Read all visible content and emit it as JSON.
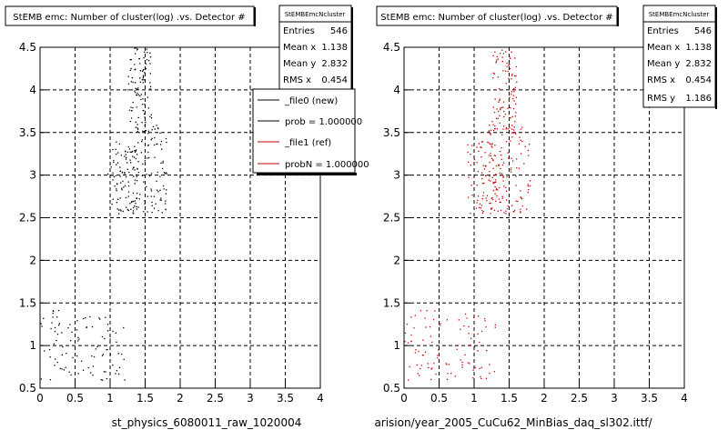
{
  "panels": [
    {
      "title": "StEMB emc: Number of cluster(log) .vs. Detector #",
      "stats": {
        "name": "StEMBEmcNcluster",
        "rows": [
          {
            "label": "Entries",
            "value": "546"
          },
          {
            "label": "Mean x",
            "value": "1.138"
          },
          {
            "label": "Mean y",
            "value": "2.832"
          },
          {
            "label": "RMS x",
            "value": "0.454"
          }
        ]
      },
      "legend": [
        {
          "label": "_file0 (new)",
          "color": "#000000"
        },
        {
          "label": "prob = 1.000000",
          "color": "#000000"
        },
        {
          "label": "_file1 (ref)",
          "color": "#cc0000"
        },
        {
          "label": "probN = 1.000000",
          "color": "#cc0000"
        }
      ],
      "xlabel": "st_physics_6080011_raw_1020004",
      "marker_color": "#000000"
    },
    {
      "title": "StEMB emc: Number of cluster(log) .vs. Detector #",
      "stats": {
        "name": "StEMBEmcNcluster",
        "rows": [
          {
            "label": "Entries",
            "value": "546"
          },
          {
            "label": "Mean x",
            "value": "1.138"
          },
          {
            "label": "Mean y",
            "value": "2.832"
          },
          {
            "label": "RMS x",
            "value": "0.454"
          },
          {
            "label": "RMS y",
            "value": "1.186"
          }
        ]
      },
      "legend": [],
      "xlabel": "arision/year_2005_CuCu62_MinBias_daq_sl302.ittf/",
      "marker_color": "#cc0000"
    }
  ],
  "chart_data": [
    {
      "type": "scatter",
      "title": "StEMB emc: Number of cluster(log) .vs. Detector #",
      "xlabel": "st_physics_6080011_raw_1020004",
      "ylabel": "",
      "xlim": [
        0,
        4
      ],
      "ylim": [
        0.5,
        4.5
      ],
      "xticks": [
        "0",
        "0.5",
        "1",
        "1.5",
        "2",
        "2.5",
        "3",
        "3.5",
        "4"
      ],
      "yticks": [
        "0.5",
        "1",
        "1.5",
        "2",
        "2.5",
        "3",
        "3.5",
        "4",
        "4.5"
      ],
      "grid": true,
      "marker_color": "#000000",
      "entries": 546,
      "mean_x": 1.138,
      "mean_y": 2.832,
      "rms_x": 0.454,
      "clusters": [
        {
          "x_range": [
            0.0,
            0.45
          ],
          "y_range": [
            0.6,
            1.45
          ],
          "count": 40
        },
        {
          "x_range": [
            0.45,
            1.2
          ],
          "y_range": [
            0.6,
            1.4
          ],
          "count": 55
        },
        {
          "x_range": [
            0.95,
            1.4
          ],
          "y_range": [
            2.55,
            3.4
          ],
          "count": 90
        },
        {
          "x_range": [
            1.2,
            1.8
          ],
          "y_range": [
            2.55,
            3.6
          ],
          "count": 110
        },
        {
          "x_range": [
            1.25,
            1.6
          ],
          "y_range": [
            3.5,
            4.5
          ],
          "count": 95
        }
      ]
    },
    {
      "type": "scatter",
      "title": "StEMB emc: Number of cluster(log) .vs. Detector #",
      "xlabel": "arision/year_2005_CuCu62_MinBias_daq_sl302.ittf/",
      "ylabel": "",
      "xlim": [
        0,
        4
      ],
      "ylim": [
        0.5,
        4.5
      ],
      "xticks": [
        "0",
        "0.5",
        "1",
        "1.5",
        "2",
        "2.5",
        "3",
        "3.5",
        "4"
      ],
      "yticks": [
        "0.5",
        "1",
        "1.5",
        "2",
        "2.5",
        "3",
        "3.5",
        "4",
        "4.5"
      ],
      "grid": true,
      "marker_color": "#cc0000",
      "entries": 546,
      "mean_x": 1.138,
      "mean_y": 2.832,
      "rms_x": 0.454,
      "rms_y": 1.186,
      "clusters": [
        {
          "x_range": [
            0.0,
            0.45
          ],
          "y_range": [
            0.6,
            1.45
          ],
          "count": 40
        },
        {
          "x_range": [
            0.45,
            1.3
          ],
          "y_range": [
            0.6,
            1.4
          ],
          "count": 55
        },
        {
          "x_range": [
            0.9,
            1.4
          ],
          "y_range": [
            2.55,
            3.4
          ],
          "count": 90
        },
        {
          "x_range": [
            1.2,
            1.8
          ],
          "y_range": [
            2.55,
            3.6
          ],
          "count": 110
        },
        {
          "x_range": [
            1.25,
            1.6
          ],
          "y_range": [
            3.5,
            4.5
          ],
          "count": 95
        }
      ]
    }
  ]
}
